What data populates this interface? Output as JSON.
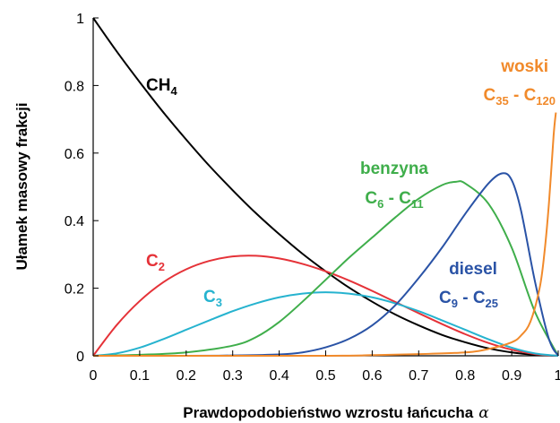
{
  "chart_data": {
    "type": "line",
    "xlabel": "Prawdopodobieństwo wzrostu łańcucha",
    "xlabel_symbol": "α",
    "ylabel": "Ułamek masowy frakcji",
    "xlim": [
      0,
      1
    ],
    "ylim": [
      0,
      1
    ],
    "x_ticks": [
      "0",
      "0.1",
      "0.2",
      "0.3",
      "0.4",
      "0.5",
      "0.6",
      "0.7",
      "0.8",
      "0.9",
      "1"
    ],
    "y_ticks": [
      "0",
      "0.2",
      "0.4",
      "0.6",
      "0.8",
      "1"
    ],
    "grid": false,
    "series": [
      {
        "name": "CH4",
        "label_lines": [
          {
            "main": "CH",
            "sub": "4"
          }
        ],
        "color": "#000000",
        "x": [
          0,
          0.05,
          0.1,
          0.15,
          0.2,
          0.25,
          0.3,
          0.35,
          0.4,
          0.45,
          0.5,
          0.55,
          0.6,
          0.65,
          0.7,
          0.75,
          0.8,
          0.85,
          0.9,
          0.95,
          1.0
        ],
        "y": [
          1.0,
          0.902,
          0.81,
          0.722,
          0.64,
          0.562,
          0.49,
          0.422,
          0.36,
          0.302,
          0.25,
          0.202,
          0.16,
          0.122,
          0.09,
          0.062,
          0.04,
          0.022,
          0.01,
          0.003,
          0.0
        ]
      },
      {
        "name": "C2",
        "label_lines": [
          {
            "main": "C",
            "sub": "2"
          }
        ],
        "color": "#e53238",
        "x": [
          0,
          0.05,
          0.1,
          0.15,
          0.2,
          0.25,
          0.3,
          0.35,
          0.4,
          0.45,
          0.5,
          0.55,
          0.6,
          0.65,
          0.7,
          0.75,
          0.8,
          0.85,
          0.9,
          0.95,
          1.0
        ],
        "y": [
          0.0,
          0.09,
          0.162,
          0.217,
          0.256,
          0.281,
          0.294,
          0.296,
          0.288,
          0.272,
          0.25,
          0.223,
          0.192,
          0.159,
          0.126,
          0.094,
          0.064,
          0.038,
          0.018,
          0.005,
          0.0
        ]
      },
      {
        "name": "C3",
        "label_lines": [
          {
            "main": "C",
            "sub": "3"
          }
        ],
        "color": "#26b3cf",
        "x": [
          0,
          0.05,
          0.1,
          0.15,
          0.2,
          0.25,
          0.3,
          0.35,
          0.4,
          0.45,
          0.5,
          0.55,
          0.6,
          0.65,
          0.7,
          0.75,
          0.8,
          0.85,
          0.9,
          0.95,
          1.0
        ],
        "y": [
          0.0,
          0.007,
          0.024,
          0.049,
          0.077,
          0.105,
          0.132,
          0.155,
          0.173,
          0.184,
          0.188,
          0.184,
          0.173,
          0.155,
          0.132,
          0.105,
          0.077,
          0.049,
          0.024,
          0.007,
          0.0
        ]
      },
      {
        "name": "benzyna",
        "label_lines": [
          {
            "main": "benzyna"
          },
          {
            "main": "C",
            "sub": "6",
            "tail_main": " - C",
            "tail_sub": "11"
          }
        ],
        "color": "#3fae4b",
        "x": [
          0,
          0.1,
          0.2,
          0.3,
          0.35,
          0.4,
          0.45,
          0.5,
          0.55,
          0.6,
          0.65,
          0.7,
          0.75,
          0.78,
          0.8,
          0.85,
          0.9,
          0.95,
          1.0
        ],
        "y": [
          0.0,
          0.003,
          0.01,
          0.03,
          0.055,
          0.1,
          0.16,
          0.225,
          0.29,
          0.35,
          0.41,
          0.465,
          0.505,
          0.515,
          0.51,
          0.45,
          0.32,
          0.13,
          0.0
        ]
      },
      {
        "name": "diesel",
        "label_lines": [
          {
            "main": "diesel"
          },
          {
            "main": "C",
            "sub": "9",
            "tail_main": " - C",
            "tail_sub": "25"
          }
        ],
        "color": "#2a53a6",
        "x": [
          0,
          0.2,
          0.3,
          0.4,
          0.45,
          0.5,
          0.55,
          0.6,
          0.65,
          0.7,
          0.75,
          0.8,
          0.85,
          0.88,
          0.9,
          0.92,
          0.95,
          0.98,
          1.0
        ],
        "y": [
          0.0,
          0.0,
          0.001,
          0.004,
          0.01,
          0.025,
          0.05,
          0.09,
          0.15,
          0.23,
          0.32,
          0.42,
          0.51,
          0.54,
          0.52,
          0.43,
          0.22,
          0.05,
          0.0
        ]
      },
      {
        "name": "woski",
        "label_lines": [
          {
            "main": "woski"
          },
          {
            "main": "C",
            "sub": "35",
            "tail_main": " - C",
            "tail_sub": "120"
          }
        ],
        "color": "#f18a2b",
        "x": [
          0,
          0.5,
          0.6,
          0.7,
          0.8,
          0.85,
          0.9,
          0.92,
          0.94,
          0.96,
          0.97,
          0.98,
          0.99,
          0.995
        ],
        "y": [
          0.0,
          0.0,
          0.002,
          0.005,
          0.01,
          0.02,
          0.04,
          0.06,
          0.1,
          0.2,
          0.3,
          0.45,
          0.65,
          0.72
        ]
      }
    ]
  }
}
